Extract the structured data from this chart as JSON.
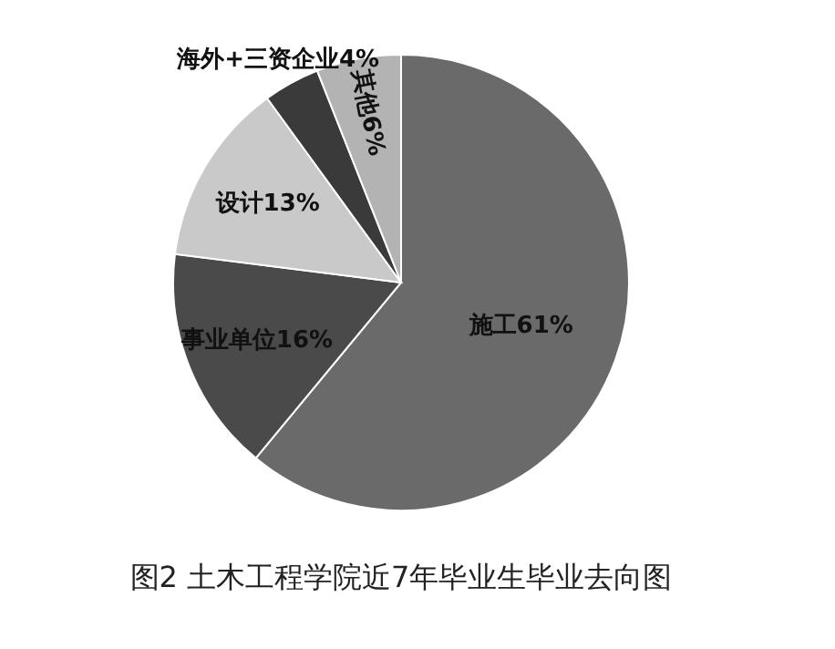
{
  "chart_data": {
    "type": "pie",
    "title": "图2 土木工程学院近7年毕业生毕业去向图",
    "categories": [
      "施工",
      "事业单位",
      "设计",
      "海外+三资企业",
      "其他"
    ],
    "values": [
      61,
      16,
      13,
      4,
      6
    ],
    "colors": [
      "#6a6a6a",
      "#4a4a4a",
      "#c9c9c9",
      "#3a3a3a",
      "#b3b3b3"
    ],
    "value_labels": [
      "61%",
      "16%",
      "13%",
      "4%",
      "6%"
    ],
    "legend": false
  }
}
